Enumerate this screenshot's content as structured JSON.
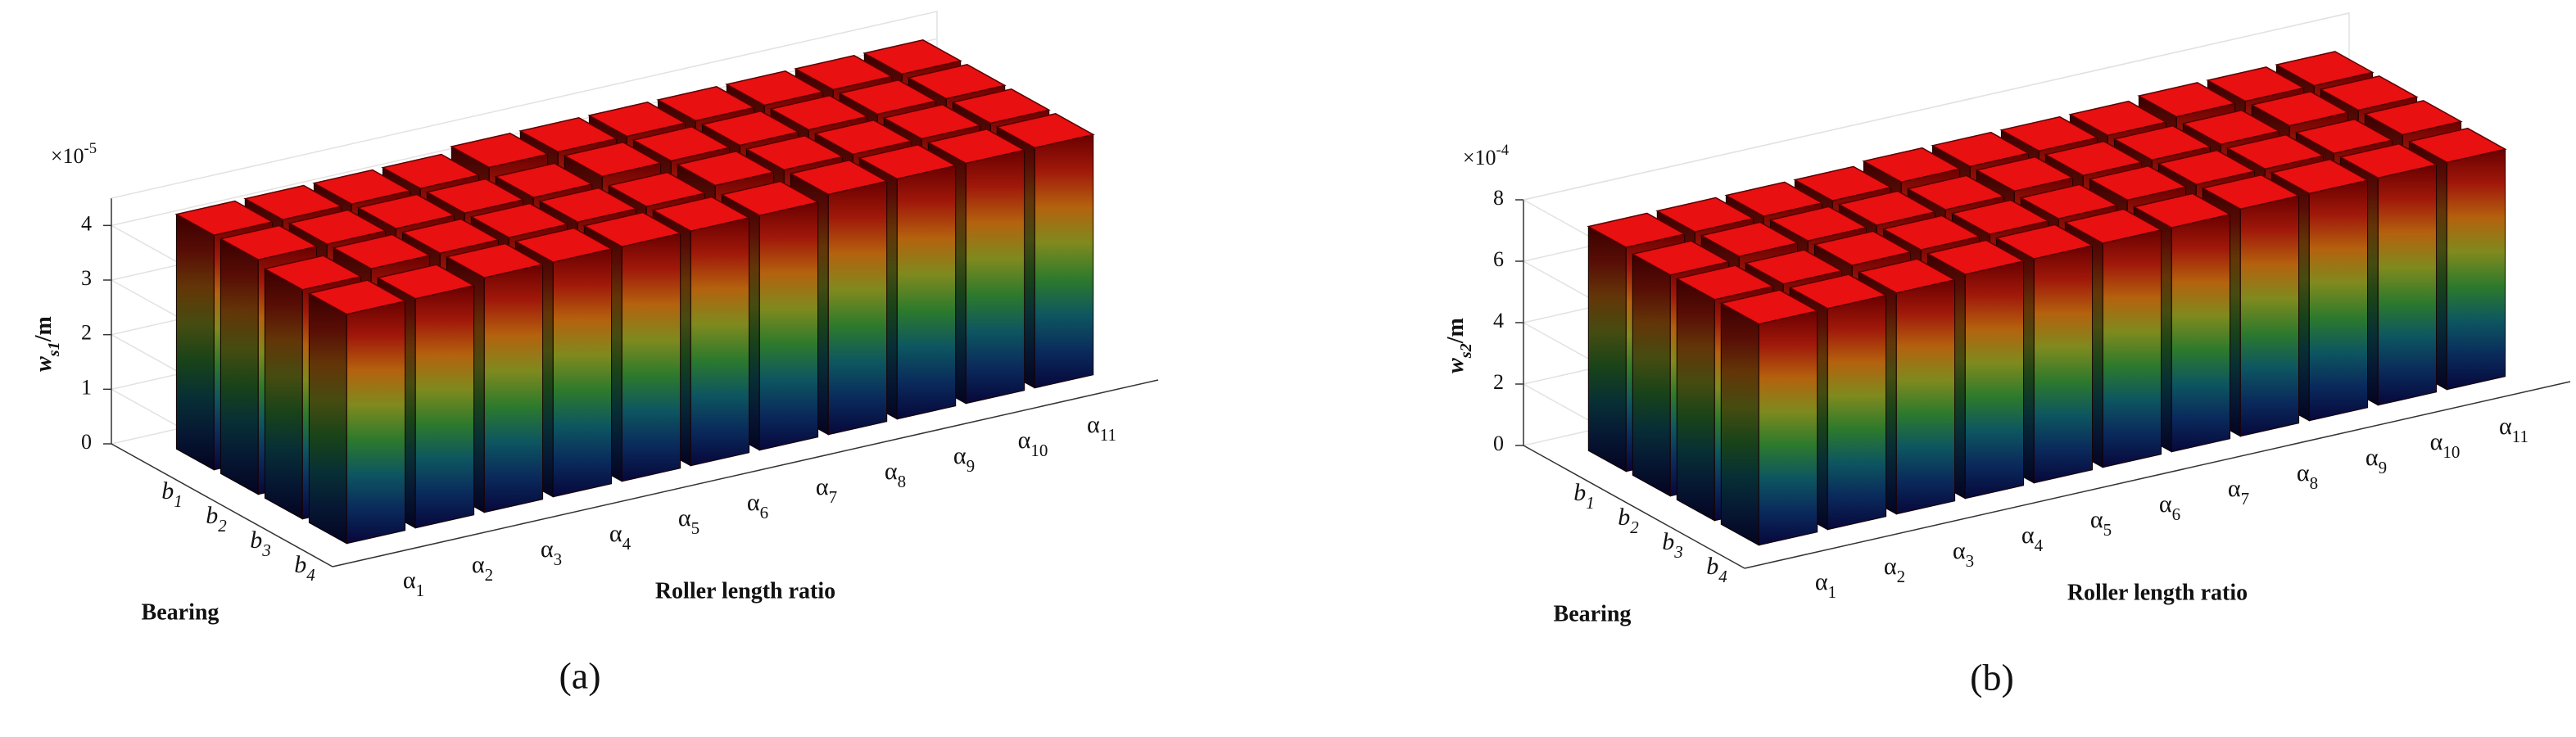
{
  "chart_data": [
    {
      "type": "bar3d",
      "panel": "(a)",
      "xlabel": "Roller length ratio",
      "ylabel": "Bearing",
      "zlabel": {
        "symbol": "w",
        "subscript": "s1",
        "unit": "/m"
      },
      "zscale": {
        "base": "×10",
        "exponent": "-5"
      },
      "categories": [
        "α1",
        "α2",
        "α3",
        "α4",
        "α5",
        "α6",
        "α7",
        "α8",
        "α9",
        "α10",
        "α11"
      ],
      "bearings": [
        "b1",
        "b2",
        "b3",
        "b4"
      ],
      "values": [
        [
          4.3,
          4.3,
          4.3,
          4.3,
          4.4,
          4.4,
          4.4,
          4.4,
          4.4,
          4.4,
          4.4
        ],
        [
          4.3,
          4.3,
          4.3,
          4.3,
          4.3,
          4.4,
          4.4,
          4.4,
          4.4,
          4.4,
          4.4
        ],
        [
          4.2,
          4.3,
          4.3,
          4.3,
          4.3,
          4.3,
          4.4,
          4.4,
          4.4,
          4.4,
          4.4
        ],
        [
          4.2,
          4.2,
          4.3,
          4.3,
          4.3,
          4.3,
          4.3,
          4.4,
          4.4,
          4.4,
          4.4
        ]
      ],
      "zlim": [
        0,
        4.5
      ],
      "zticks": [
        0,
        1,
        2,
        3,
        4
      ],
      "grid": true,
      "top_color": "#e81010",
      "colormap": [
        "#07073a",
        "#0a2a5c",
        "#0d5660",
        "#2d7a2c",
        "#7f8a1e",
        "#b4620e",
        "#a0180a",
        "#6a0000"
      ]
    },
    {
      "type": "bar3d",
      "panel": "(b)",
      "xlabel": "Roller length ratio",
      "ylabel": "Bearing",
      "zlabel": {
        "symbol": "w",
        "subscript": "s2",
        "unit": "/m"
      },
      "zscale": {
        "base": "×10",
        "exponent": "-4"
      },
      "categories": [
        "α1",
        "α2",
        "α3",
        "α4",
        "α5",
        "α6",
        "α7",
        "α8",
        "α9",
        "α10",
        "α11"
      ],
      "bearings": [
        "b1",
        "b2",
        "b3",
        "b4"
      ],
      "values": [
        [
          7.3,
          7.3,
          7.3,
          7.3,
          7.4,
          7.4,
          7.4,
          7.4,
          7.5,
          7.5,
          7.5
        ],
        [
          7.2,
          7.3,
          7.3,
          7.3,
          7.3,
          7.4,
          7.4,
          7.4,
          7.4,
          7.5,
          7.5
        ],
        [
          7.2,
          7.2,
          7.3,
          7.3,
          7.3,
          7.3,
          7.4,
          7.4,
          7.4,
          7.4,
          7.5
        ],
        [
          7.2,
          7.2,
          7.2,
          7.3,
          7.3,
          7.3,
          7.3,
          7.4,
          7.4,
          7.4,
          7.4
        ]
      ],
      "zlim": [
        0,
        8
      ],
      "zticks": [
        0,
        2,
        4,
        6,
        8
      ],
      "grid": true,
      "top_color": "#e81010",
      "colormap": [
        "#07073a",
        "#0a2a5c",
        "#0d5660",
        "#2d7a2c",
        "#7f8a1e",
        "#b4620e",
        "#a0180a",
        "#6a0000"
      ]
    }
  ]
}
